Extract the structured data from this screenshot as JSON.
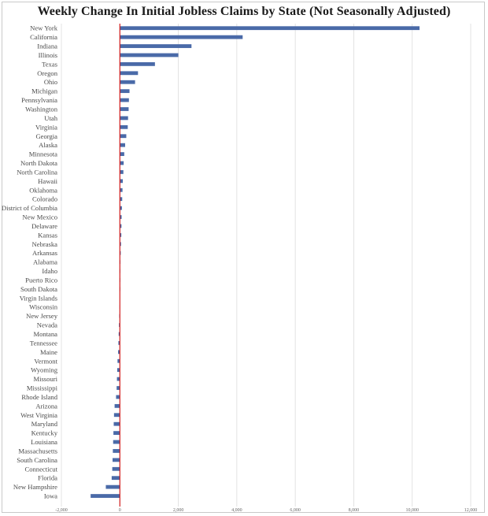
{
  "chart_data": {
    "type": "bar",
    "orientation": "horizontal",
    "title": "Weekly Change In Initial Jobless Claims by State (Not Seasonally Adjusted)",
    "xlabel": "",
    "ylabel": "",
    "xlim": [
      -2000,
      12000
    ],
    "xticks": [
      -2000,
      0,
      2000,
      4000,
      6000,
      8000,
      10000,
      12000
    ],
    "xtick_labels": [
      "-2,000",
      "0",
      "2,000",
      "4,000",
      "6,000",
      "8,000",
      "10,000",
      "12,000"
    ],
    "grid": "vertical",
    "bar_color": "#4a6aa8",
    "zero_line_color": "#d11a1a",
    "categories": [
      "New York",
      "California",
      "Indiana",
      "Illinois",
      "Texas",
      "Oregon",
      "Ohio",
      "Michigan",
      "Pennsylvania",
      "Washington",
      "Utah",
      "Virginia",
      "Georgia",
      "Alaska",
      "Minnesota",
      "North Dakota",
      "North Carolina",
      "Hawaii",
      "Oklahoma",
      "Colorado",
      "District of Columbia",
      "New Mexico",
      "Delaware",
      "Kansas",
      "Nebraska",
      "Arkansas",
      "Alabama",
      "Idaho",
      "Puerto Rico",
      "South Dakota",
      "Virgin Islands",
      "Wisconsin",
      "New Jersey",
      "Nevada",
      "Montana",
      "Tennessee",
      "Maine",
      "Vermont",
      "Wyoming",
      "Missouri",
      "Mississippi",
      "Rhode Island",
      "Arizona",
      "West Virginia",
      "Maryland",
      "Kentucky",
      "Louisiana",
      "Massachusetts",
      "South Carolina",
      "Connecticut",
      "Florida",
      "New Hampshire",
      "Iowa"
    ],
    "values": [
      10250,
      4200,
      2450,
      2000,
      1200,
      620,
      520,
      330,
      310,
      300,
      280,
      270,
      220,
      180,
      150,
      130,
      120,
      100,
      90,
      80,
      70,
      60,
      55,
      50,
      40,
      30,
      20,
      10,
      5,
      5,
      0,
      -10,
      -20,
      -30,
      -40,
      -50,
      -60,
      -80,
      -90,
      -100,
      -110,
      -130,
      -180,
      -200,
      -210,
      -220,
      -230,
      -240,
      -250,
      -260,
      -280,
      -480,
      -1000
    ]
  }
}
